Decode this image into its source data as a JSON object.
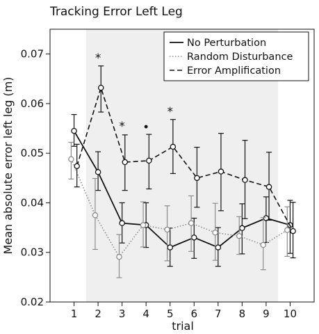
{
  "chart_data": {
    "type": "line",
    "title": "Tracking Error Left Leg",
    "xlabel": "trial",
    "ylabel": "Mean absolute error left leg (m)",
    "x": [
      1,
      2,
      3,
      4,
      5,
      6,
      7,
      8,
      9,
      10
    ],
    "xlim": [
      0,
      11
    ],
    "ylim": [
      0.02,
      0.075
    ],
    "yticks": [
      "0.02",
      "0.03",
      "0.04",
      "0.05",
      "0.06",
      "0.07"
    ],
    "xticks": [
      "1",
      "2",
      "3",
      "4",
      "5",
      "6",
      "7",
      "8",
      "9",
      "10"
    ],
    "shaded_region_trials": [
      2,
      9
    ],
    "legend_position": "top-right",
    "series": [
      {
        "name": "No Perturbation",
        "style": "solid",
        "color": "#111111",
        "values": [
          0.0545,
          0.0462,
          0.0359,
          0.0355,
          0.031,
          0.033,
          0.031,
          0.0349,
          0.0369,
          0.0355
        ],
        "err_low": [
          0.0514,
          0.0425,
          0.0319,
          0.031,
          0.0272,
          0.0288,
          0.0272,
          0.0297,
          0.032,
          0.0298
        ],
        "err_high": [
          0.0578,
          0.0503,
          0.04,
          0.04,
          0.0349,
          0.0369,
          0.035,
          0.0398,
          0.0412,
          0.0405
        ]
      },
      {
        "name": "Random Disturbance",
        "style": "dotted",
        "color": "#8c8c8c",
        "values": [
          0.0488,
          0.0375,
          0.0291,
          0.0355,
          0.0346,
          0.0359,
          0.034,
          0.0333,
          0.0315,
          0.0345
        ],
        "err_low": [
          0.0448,
          0.0306,
          0.0249,
          0.0311,
          0.0283,
          0.0302,
          0.0284,
          0.0296,
          0.0265,
          0.0292
        ],
        "err_high": [
          0.0522,
          0.0449,
          0.0336,
          0.0402,
          0.0394,
          0.0414,
          0.0399,
          0.0372,
          0.037,
          0.0392
        ]
      },
      {
        "name": "Error Amplification",
        "style": "dashed",
        "color": "#111111",
        "values": [
          0.0474,
          0.0632,
          0.0482,
          0.0485,
          0.0513,
          0.045,
          0.0463,
          0.0446,
          0.0432,
          0.0343
        ],
        "err_low": [
          0.0432,
          0.0583,
          0.0425,
          0.0428,
          0.0459,
          0.0391,
          0.0384,
          0.0368,
          0.0365,
          0.0289
        ],
        "err_high": [
          0.0518,
          0.0676,
          0.0537,
          0.0538,
          0.0568,
          0.0512,
          0.054,
          0.0526,
          0.0502,
          0.0401
        ]
      }
    ],
    "annotations": [
      {
        "x": 2,
        "y": 0.0695,
        "text": "*"
      },
      {
        "x": 3,
        "y": 0.0558,
        "text": "*"
      },
      {
        "x": 4,
        "y": 0.0556,
        "text": "•"
      },
      {
        "x": 5,
        "y": 0.0587,
        "text": "*"
      }
    ]
  }
}
